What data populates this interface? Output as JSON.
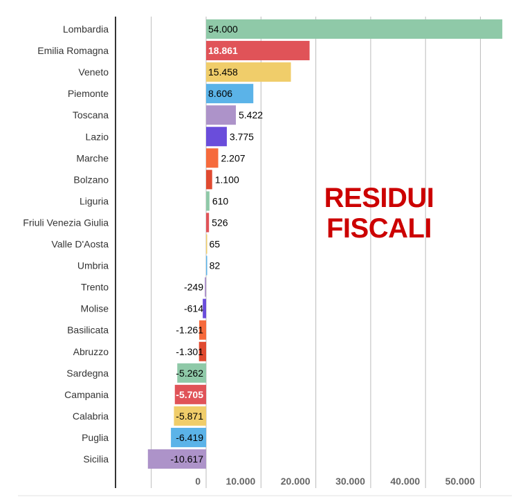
{
  "chart_data": {
    "type": "bar",
    "orientation": "horizontal",
    "title": "",
    "xlabel": "",
    "ylabel": "",
    "xlim": [
      -10617,
      54000
    ],
    "grid": true,
    "categories": [
      "Lombardia",
      "Emilia Romagna",
      "Veneto",
      "Piemonte",
      "Toscana",
      "Lazio",
      "Marche",
      "Bolzano",
      "Liguria",
      "Friuli Venezia Giulia",
      "Valle D'Aosta",
      "Umbria",
      "Trento",
      "Molise",
      "Basilicata",
      "Abruzzo",
      "Sardegna",
      "Campania",
      "Calabria",
      "Puglia",
      "Sicilia"
    ],
    "values": [
      54000,
      18861,
      15458,
      8606,
      5422,
      3775,
      2207,
      1100,
      610,
      526,
      65,
      82,
      -249,
      -614,
      -1261,
      -1301,
      -5262,
      -5705,
      -5871,
      -6419,
      -10617
    ],
    "value_labels": [
      "54.000",
      "18.861",
      "15.458",
      "8.606",
      "5.422",
      "3.775",
      "2.207",
      "1.100",
      "610",
      "526",
      "65",
      "82",
      "-249",
      "-614",
      "-1.261",
      "-1.301",
      "-5.262",
      "-5.705",
      "-5.871",
      "-6.419",
      "-10.617"
    ],
    "bar_colors": [
      "#8fc9a8",
      "#e05358",
      "#f0cd6a",
      "#5bb3e8",
      "#ad93c9",
      "#6a4ddb",
      "#f66a3c",
      "#e04a30",
      "#8fc9a8",
      "#e05358",
      "#f0cd6a",
      "#5bb3e8",
      "#ad93c9",
      "#6a4ddb",
      "#f66a3c",
      "#e04a30",
      "#8fc9a8",
      "#e05358",
      "#f0cd6a",
      "#5bb3e8",
      "#ad93c9"
    ],
    "label_colors": [
      "#000000",
      "#ffffff",
      "#000000",
      "#000000",
      "#000000",
      "#000000",
      "#000000",
      "#000000",
      "#000000",
      "#000000",
      "#000000",
      "#000000",
      "#000000",
      "#000000",
      "#000000",
      "#000000",
      "#000000",
      "#ffffff",
      "#000000",
      "#000000",
      "#000000"
    ],
    "ticks": [
      0,
      10000,
      20000,
      30000,
      40000,
      50000
    ],
    "tick_labels": [
      "0",
      "10.000",
      "20.000",
      "30.000",
      "40.000",
      "50.000"
    ],
    "annotation": [
      "RESIDUI",
      "FISCALI"
    ]
  },
  "colors": {
    "annotation": "#cc0000",
    "gridline": "#bbbbbb",
    "axis": "#333333"
  }
}
